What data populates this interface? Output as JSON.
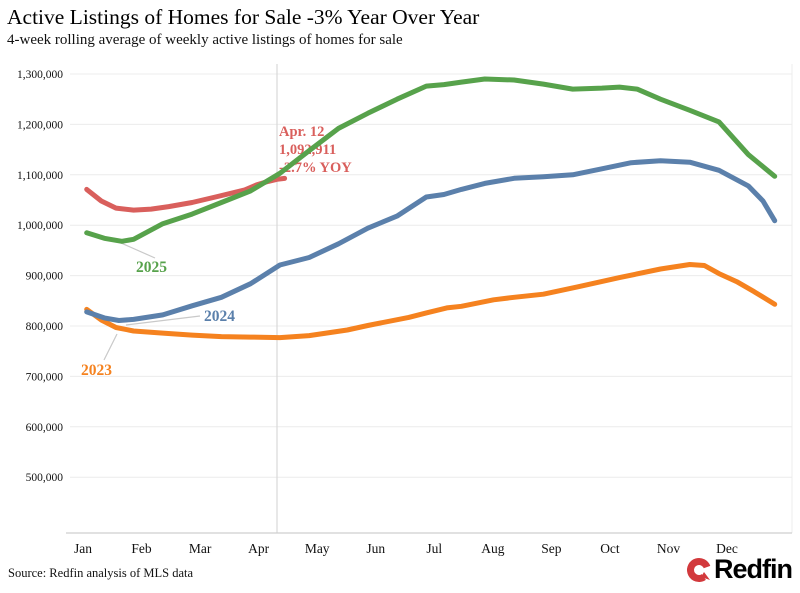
{
  "header": {
    "title": "Active Listings of Homes for Sale -3% Year Over Year",
    "subtitle": "4-week rolling average of weekly active listings of homes for sale"
  },
  "footer": {
    "source": "Source: Redfin analysis of MLS data",
    "logo_text": "Redfin",
    "logo_color": "#d2393c"
  },
  "colors": {
    "gridline": "#ececec",
    "axis_line": "#cfcfcf",
    "marker_line": "#d8d8d8",
    "leader_line": "#c9c9c9",
    "text": "#111111"
  },
  "chart_data": {
    "type": "line",
    "title": "Active Listings of Homes for Sale -3% Year Over Year",
    "subtitle": "4-week rolling average of weekly active listings of homes for sale",
    "xlabel": "",
    "ylabel": "",
    "x_axis": {
      "labels": [
        "Jan",
        "Feb",
        "Mar",
        "Apr",
        "May",
        "Jun",
        "Jul",
        "Aug",
        "Sep",
        "Oct",
        "Nov",
        "Dec"
      ]
    },
    "y_axis": {
      "ticks": [
        1300000,
        1200000,
        1100000,
        1000000,
        900000,
        800000,
        700000,
        600000,
        500000
      ],
      "tick_labels": [
        "1,300,000",
        "1,200,000",
        "1,100,000",
        "1,000,000",
        "900,000",
        "800,000",
        "700,000",
        "600,000",
        "500,000"
      ]
    },
    "ylim": [
      390000,
      1320000
    ],
    "grid": "horizontal",
    "legend_position": "inline-labels",
    "annotation": {
      "lines": [
        "Apr. 12",
        "1,092,911",
        "-2.7% YOY"
      ],
      "value": 1092911,
      "yoy": "-2.7%"
    },
    "series": [
      {
        "label": "2023",
        "color": "#f5821f",
        "points": [
          [
            0.2,
            833000
          ],
          [
            0.45,
            812000
          ],
          [
            0.7,
            797000
          ],
          [
            1.0,
            790000
          ],
          [
            1.5,
            786000
          ],
          [
            2.0,
            782000
          ],
          [
            2.5,
            779000
          ],
          [
            3.0,
            778000
          ],
          [
            3.5,
            777000
          ],
          [
            4.0,
            781000
          ],
          [
            4.65,
            792000
          ],
          [
            5.0,
            801000
          ],
          [
            5.7,
            817000
          ],
          [
            6.0,
            826000
          ],
          [
            6.35,
            836000
          ],
          [
            6.6,
            839000
          ],
          [
            7.15,
            852000
          ],
          [
            7.5,
            857000
          ],
          [
            8.0,
            863000
          ],
          [
            8.6,
            878000
          ],
          [
            9.3,
            896000
          ],
          [
            10.0,
            913000
          ],
          [
            10.5,
            922000
          ],
          [
            10.75,
            920000
          ],
          [
            11.0,
            904000
          ],
          [
            11.3,
            888000
          ],
          [
            11.6,
            868000
          ],
          [
            11.95,
            843000
          ]
        ]
      },
      {
        "label": "2024",
        "color": "#5b80ab",
        "points": [
          [
            0.2,
            828000
          ],
          [
            0.5,
            816000
          ],
          [
            0.75,
            811000
          ],
          [
            1.0,
            813000
          ],
          [
            1.5,
            822000
          ],
          [
            2.0,
            840000
          ],
          [
            2.5,
            857000
          ],
          [
            3.0,
            884000
          ],
          [
            3.5,
            921000
          ],
          [
            4.0,
            936000
          ],
          [
            4.5,
            963000
          ],
          [
            5.0,
            994000
          ],
          [
            5.5,
            1018000
          ],
          [
            6.0,
            1056000
          ],
          [
            6.3,
            1061000
          ],
          [
            6.6,
            1071000
          ],
          [
            7.0,
            1083000
          ],
          [
            7.5,
            1093000
          ],
          [
            8.0,
            1096000
          ],
          [
            8.5,
            1100000
          ],
          [
            9.0,
            1112000
          ],
          [
            9.5,
            1124000
          ],
          [
            10.0,
            1128000
          ],
          [
            10.5,
            1125000
          ],
          [
            11.0,
            1109000
          ],
          [
            11.5,
            1078000
          ],
          [
            11.75,
            1048000
          ],
          [
            11.95,
            1009000
          ]
        ]
      },
      {
        "label": "2025",
        "color": "#57a24b",
        "points": [
          [
            0.2,
            985000
          ],
          [
            0.5,
            974000
          ],
          [
            0.8,
            968000
          ],
          [
            1.0,
            972000
          ],
          [
            1.5,
            1003000
          ],
          [
            2.0,
            1022000
          ],
          [
            2.5,
            1045000
          ],
          [
            3.0,
            1068000
          ],
          [
            3.5,
            1103000
          ],
          [
            4.0,
            1148000
          ],
          [
            4.5,
            1192000
          ],
          [
            5.0,
            1222000
          ],
          [
            5.5,
            1250000
          ],
          [
            6.0,
            1276000
          ],
          [
            6.3,
            1279000
          ],
          [
            6.6,
            1284000
          ],
          [
            7.0,
            1290000
          ],
          [
            7.5,
            1288000
          ],
          [
            8.0,
            1280000
          ],
          [
            8.5,
            1270000
          ],
          [
            9.0,
            1272000
          ],
          [
            9.3,
            1274000
          ],
          [
            9.6,
            1270000
          ],
          [
            10.0,
            1250000
          ],
          [
            10.5,
            1228000
          ],
          [
            11.0,
            1205000
          ],
          [
            11.5,
            1140000
          ],
          [
            11.95,
            1097000
          ]
        ]
      },
      {
        "label": "",
        "color": "#d95f5c",
        "points": [
          [
            0.2,
            1071000
          ],
          [
            0.45,
            1048000
          ],
          [
            0.7,
            1034000
          ],
          [
            1.0,
            1030000
          ],
          [
            1.3,
            1032000
          ],
          [
            1.6,
            1037000
          ],
          [
            2.0,
            1045000
          ],
          [
            2.4,
            1056000
          ],
          [
            2.9,
            1070000
          ],
          [
            3.1,
            1080000
          ],
          [
            3.3,
            1087000
          ],
          [
            3.45,
            1091000
          ],
          [
            3.58,
            1092911
          ]
        ]
      }
    ]
  }
}
